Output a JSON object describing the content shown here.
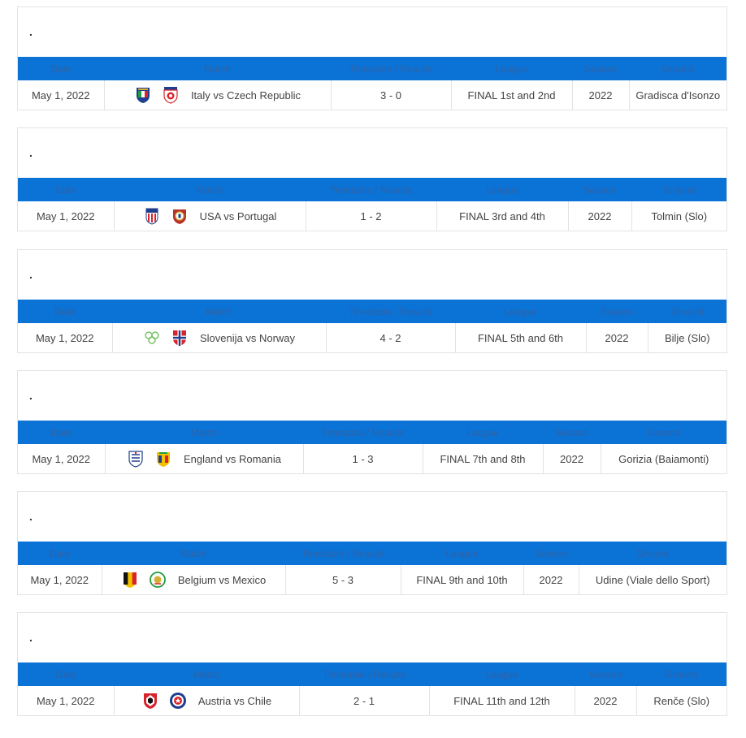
{
  "headers": [
    "Date",
    "Match",
    "Timetable / Results",
    "League",
    "Season",
    "Ground"
  ],
  "blocks": [
    {
      "title": ".",
      "date": "May 1, 2022",
      "match": "Italy vs Czech Republic",
      "home_icon": "italy-crest-icon",
      "away_icon": "czech-crest-icon",
      "result": "3 - 0",
      "league": "FINAL 1st and 2nd",
      "season": "2022",
      "ground": "Gradisca d'Isonzo"
    },
    {
      "title": ".",
      "date": "May 1, 2022",
      "match": "USA vs Portugal",
      "home_icon": "usa-crest-icon",
      "away_icon": "portugal-crest-icon",
      "result": "1 - 2",
      "league": "FINAL 3rd and 4th",
      "season": "2022",
      "ground": "Tolmin (Slo)"
    },
    {
      "title": ".",
      "date": "May 1, 2022",
      "match": "Slovenija vs Norway",
      "home_icon": "slovenia-crest-icon",
      "away_icon": "norway-crest-icon",
      "result": "4 - 2",
      "league": "FINAL 5th and 6th",
      "season": "2022",
      "ground": "Bilje (Slo)"
    },
    {
      "title": ".",
      "date": "May 1, 2022",
      "match": "England vs Romania",
      "home_icon": "england-crest-icon",
      "away_icon": "romania-crest-icon",
      "result": "1 - 3",
      "league": "FINAL 7th and 8th",
      "season": "2022",
      "ground": "Gorizia (Baiamonti)"
    },
    {
      "title": ".",
      "date": "May 1, 2022",
      "match": "Belgium vs Mexico",
      "home_icon": "belgium-crest-icon",
      "away_icon": "mexico-crest-icon",
      "result": "5 - 3",
      "league": "FINAL 9th and 10th",
      "season": "2022",
      "ground": "Udine (Viale dello Sport)"
    },
    {
      "title": ".",
      "date": "May 1, 2022",
      "match": "Austria vs Chile",
      "home_icon": "austria-crest-icon",
      "away_icon": "chile-crest-icon",
      "result": "2 - 1",
      "league": "FINAL 11th and 12th",
      "season": "2022",
      "ground": "Renče (Slo)"
    }
  ],
  "colors": {
    "header_bg": "#0b72d6",
    "header_text": "#2f63a6",
    "border": "#e3e3e3"
  }
}
